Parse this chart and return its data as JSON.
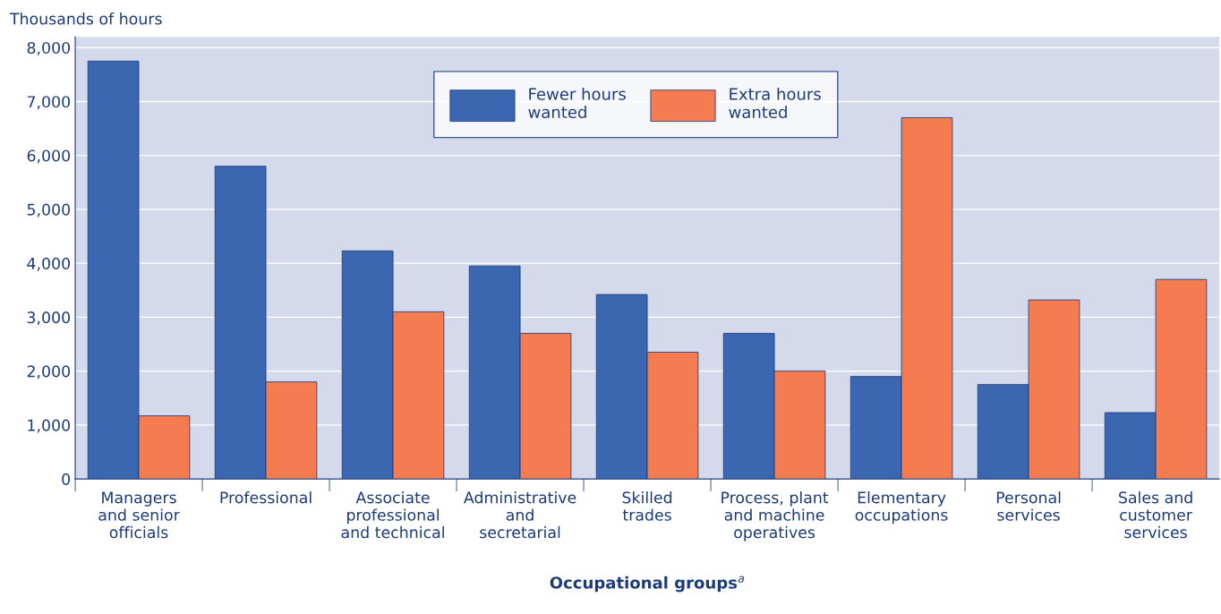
{
  "chart_data": {
    "type": "bar",
    "ylabel": "Thousands of hours",
    "xlabel": "Occupational groups$^{a}$",
    "categories": [
      "Managers\nand senior\nofficials",
      "Professional",
      "Associate\nprofessional\nand technical",
      "Administrative\nand\nsecretarial",
      "Skilled\ntrades",
      "Process, plant\nand machine\noperatives",
      "Elementary\noccupations",
      "Personal\nservices",
      "Sales and\ncustomer\nservices"
    ],
    "series": [
      {
        "name": "Fewer hours\nwanted",
        "color": "#3a67b0",
        "values": [
          7750,
          5800,
          4230,
          3950,
          3420,
          2700,
          1900,
          1750,
          1230
        ]
      },
      {
        "name": "Extra hours\nwanted",
        "color": "#f47c50",
        "values": [
          1170,
          1800,
          3100,
          2700,
          2350,
          2000,
          6700,
          3320,
          3700
        ]
      }
    ],
    "ylim": [
      0,
      8200
    ],
    "yticks": [
      0,
      {
        "value": 1000,
        "label": "1,000"
      },
      {
        "value": 2000,
        "label": "2,000"
      },
      {
        "value": 3000,
        "label": "3,000"
      },
      {
        "value": 4000,
        "label": "4,000"
      },
      {
        "value": 5000,
        "label": "5,000"
      },
      {
        "value": 6000,
        "label": "6,000"
      },
      {
        "value": 7000,
        "label": "7,000"
      },
      {
        "value": 8000,
        "label": "8,000"
      }
    ],
    "grid": "y",
    "legend": "top"
  }
}
